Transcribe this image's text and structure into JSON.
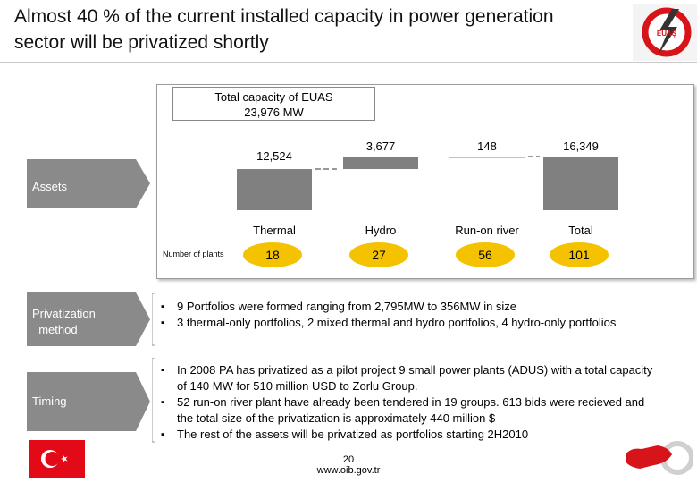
{
  "title": "Almost 40 % of the current installed capacity in power generation sector will be privatized shortly",
  "logo_text": "EÜAŞ",
  "capacity_box": {
    "line1": "Total capacity of EUAS",
    "line2": "23,976 MW"
  },
  "chart_data": {
    "type": "bar",
    "subtype": "waterfall",
    "categories": [
      "Thermal",
      "Hydro",
      "Run-on river",
      "Total"
    ],
    "values": [
      12524,
      3677,
      148,
      16349
    ],
    "value_labels": [
      "12,524",
      "3,677",
      "148",
      "16,349"
    ],
    "plants_label": "Number of plants",
    "plants": [
      "18",
      "27",
      "56",
      "101"
    ],
    "bar_color": "#808080",
    "plant_bubble_color": "#f5c200"
  },
  "sections": {
    "assets": "Assets",
    "privatization": "Privatization\n  method",
    "timing": "Timing"
  },
  "privatization_bullets": [
    "9 Portfolios were formed ranging from 2,795MW to 356MW in size",
    "3 thermal-only portfolios, 2 mixed thermal and hydro portfolios, 4 hydro-only portfolios"
  ],
  "timing_bullets": [
    "In 2008 PA has privatized as a pilot project 9 small power plants (ADUS) with a total capacity of 140 MW for 510 million USD to Zorlu Group.",
    "52 run-on river plant have already been tendered in 19 groups. 613 bids were recieved and the total size of the privatization is approximately 440 million $",
    "The rest of the assets will be privatized as portfolios starting 2H2010"
  ],
  "footer": {
    "page": "20",
    "url": "www.oib.gov.tr"
  },
  "colors": {
    "chevron": "#8a8a8a",
    "bar": "#808080",
    "bubble": "#f5c200",
    "flag_red": "#e30a17",
    "logo_red": "#d7141a"
  }
}
